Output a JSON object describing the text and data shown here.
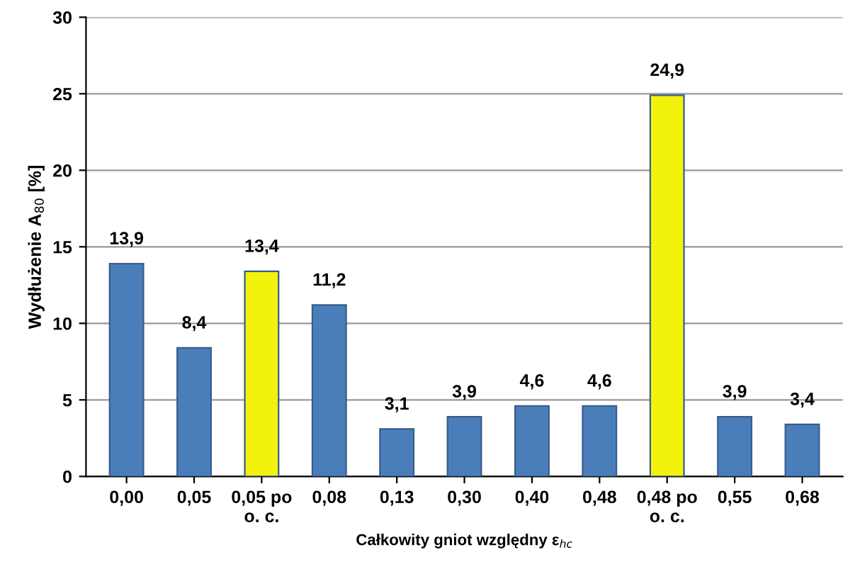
{
  "chart_data": {
    "type": "bar",
    "xlabel": "Całkowity gniot względny ε$_{hc}$",
    "ylabel": "Wydłużenie A$_{80}$ [%]",
    "categories": [
      "0,00",
      "0,05",
      "0,05 po\no. c.",
      "0,08",
      "0,13",
      "0,30",
      "0,40",
      "0,48",
      "0,48 po\no. c.",
      "0,55",
      "0,68"
    ],
    "values": [
      13.9,
      8.4,
      13.4,
      11.2,
      3.1,
      3.9,
      4.6,
      4.6,
      24.9,
      3.9,
      3.4
    ],
    "value_labels": [
      "13,9",
      "8,4",
      "13,4",
      "11,2",
      "3,1",
      "3,9",
      "4,6",
      "4,6",
      "24,9",
      "3,9",
      "3,4"
    ],
    "colors": [
      "#4a7ebb",
      "#4a7ebb",
      "#f2f20c",
      "#4a7ebb",
      "#4a7ebb",
      "#4a7ebb",
      "#4a7ebb",
      "#4a7ebb",
      "#f2f20c",
      "#4a7ebb",
      "#4a7ebb"
    ],
    "ylim": [
      0,
      30
    ],
    "yticks": [
      0,
      5,
      10,
      15,
      20,
      25,
      30
    ],
    "grid": "y",
    "legend": false
  }
}
